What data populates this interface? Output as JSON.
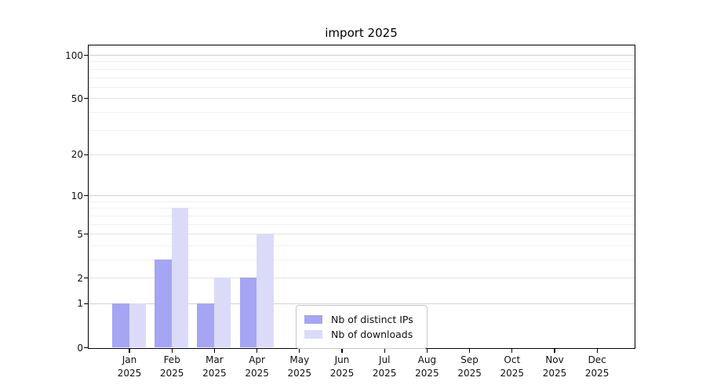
{
  "chart_data": {
    "type": "bar",
    "title": "import 2025",
    "categories": [
      "Jan",
      "Feb",
      "Mar",
      "Apr",
      "May",
      "Jun",
      "Jul",
      "Aug",
      "Sep",
      "Oct",
      "Nov",
      "Dec"
    ],
    "year_label": "2025",
    "series": [
      {
        "name": "Nb of distinct IPs",
        "color": "#a5a5f3",
        "values": [
          1,
          3,
          1,
          2,
          0,
          0,
          0,
          0,
          0,
          0,
          0,
          0
        ]
      },
      {
        "name": "Nb of downloads",
        "color": "#dbdbf9",
        "values": [
          1,
          8,
          2,
          5,
          0,
          0,
          0,
          0,
          0,
          0,
          0,
          0
        ]
      }
    ],
    "yscale": "log1p",
    "ylim": [
      0,
      117
    ],
    "yticks": [
      0,
      1,
      2,
      5,
      10,
      20,
      50,
      100
    ],
    "decade_ticks": [
      1,
      10,
      100
    ],
    "minor_gridlines": [
      3,
      4,
      6,
      7,
      8,
      9,
      30,
      40,
      60,
      70,
      80,
      90
    ],
    "grid": true,
    "legend_position": "lower center",
    "xlabel": "",
    "ylabel": ""
  }
}
